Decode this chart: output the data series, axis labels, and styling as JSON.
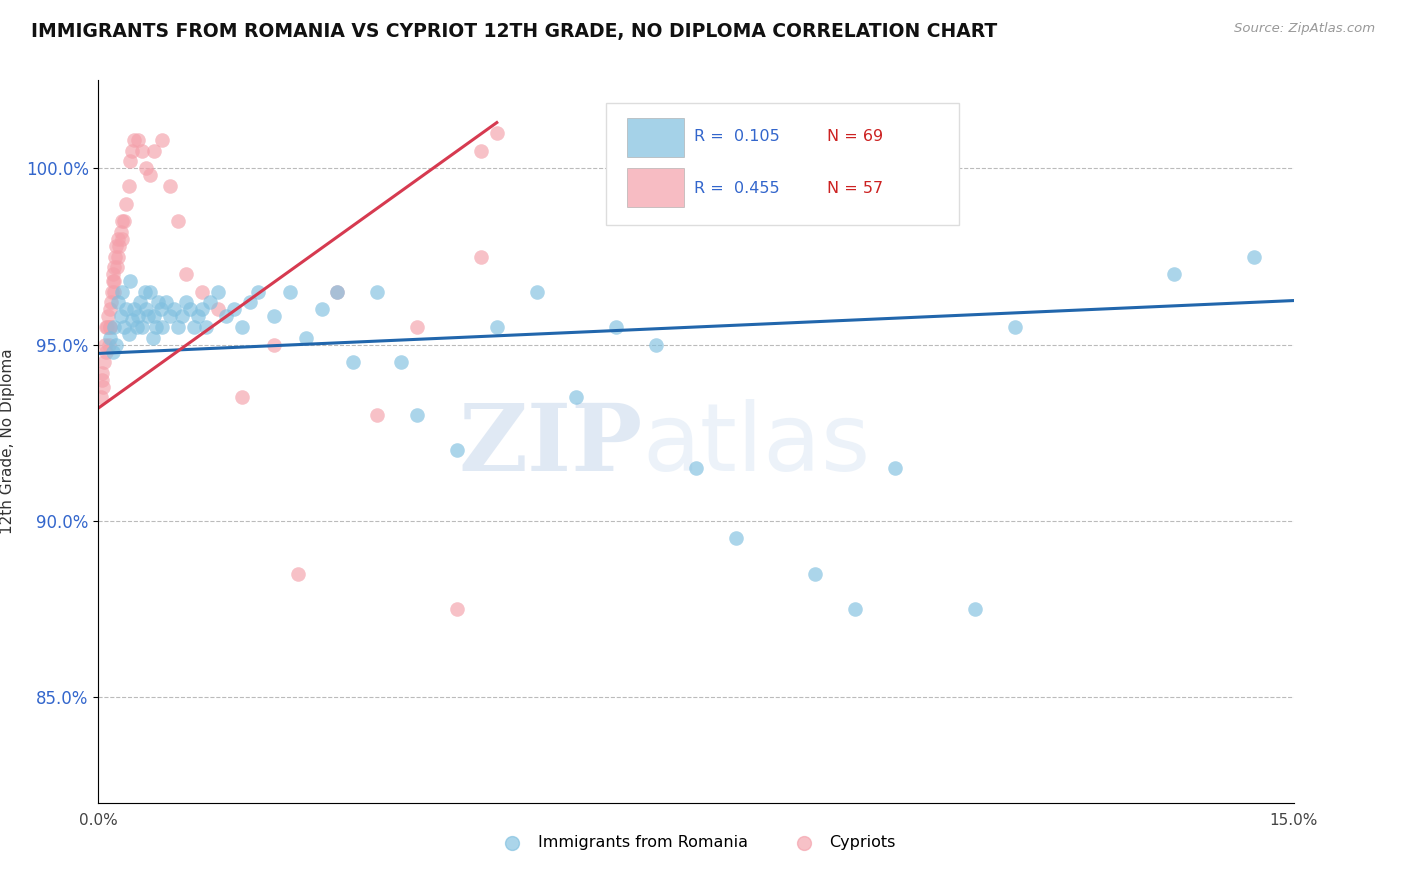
{
  "title": "IMMIGRANTS FROM ROMANIA VS CYPRIOT 12TH GRADE, NO DIPLOMA CORRELATION CHART",
  "source_text": "Source: ZipAtlas.com",
  "ylabel": "12th Grade, No Diploma",
  "xlim": [
    0.0,
    15.0
  ],
  "ylim": [
    82.0,
    102.5
  ],
  "yticks": [
    85.0,
    90.0,
    95.0,
    100.0
  ],
  "ytick_labels": [
    "85.0%",
    "90.0%",
    "95.0%",
    "100.0%"
  ],
  "legend_label_blue": "Immigrants from Romania",
  "legend_label_pink": "Cypriots",
  "blue_color": "#7fbfdf",
  "pink_color": "#f4a0aa",
  "blue_line_color": "#2166ac",
  "pink_line_color": "#d63a50",
  "watermark_zip": "ZIP",
  "watermark_atlas": "atlas",
  "blue_points_x": [
    0.15,
    0.18,
    0.2,
    0.22,
    0.25,
    0.28,
    0.3,
    0.32,
    0.35,
    0.38,
    0.4,
    0.42,
    0.45,
    0.48,
    0.5,
    0.52,
    0.55,
    0.58,
    0.6,
    0.62,
    0.65,
    0.68,
    0.7,
    0.72,
    0.75,
    0.78,
    0.8,
    0.85,
    0.9,
    0.95,
    1.0,
    1.05,
    1.1,
    1.15,
    1.2,
    1.25,
    1.3,
    1.35,
    1.4,
    1.5,
    1.6,
    1.7,
    1.8,
    1.9,
    2.0,
    2.2,
    2.4,
    2.6,
    2.8,
    3.0,
    3.2,
    3.5,
    3.8,
    4.0,
    4.5,
    5.0,
    5.5,
    6.0,
    6.5,
    7.0,
    7.5,
    8.0,
    9.0,
    9.5,
    10.0,
    11.0,
    11.5,
    13.5,
    14.5
  ],
  "blue_points_y": [
    95.2,
    94.8,
    95.5,
    95.0,
    96.2,
    95.8,
    96.5,
    95.5,
    96.0,
    95.3,
    96.8,
    95.7,
    96.0,
    95.5,
    95.8,
    96.2,
    95.5,
    96.5,
    96.0,
    95.8,
    96.5,
    95.2,
    95.8,
    95.5,
    96.2,
    96.0,
    95.5,
    96.2,
    95.8,
    96.0,
    95.5,
    95.8,
    96.2,
    96.0,
    95.5,
    95.8,
    96.0,
    95.5,
    96.2,
    96.5,
    95.8,
    96.0,
    95.5,
    96.2,
    96.5,
    95.8,
    96.5,
    95.2,
    96.0,
    96.5,
    94.5,
    96.5,
    94.5,
    93.0,
    92.0,
    95.5,
    96.5,
    93.5,
    95.5,
    95.0,
    91.5,
    89.5,
    88.5,
    87.5,
    91.5,
    87.5,
    95.5,
    97.0,
    97.5
  ],
  "pink_points_x": [
    0.03,
    0.04,
    0.05,
    0.06,
    0.07,
    0.08,
    0.09,
    0.1,
    0.11,
    0.12,
    0.13,
    0.14,
    0.15,
    0.15,
    0.16,
    0.17,
    0.18,
    0.18,
    0.19,
    0.2,
    0.2,
    0.21,
    0.22,
    0.23,
    0.24,
    0.25,
    0.26,
    0.28,
    0.3,
    0.3,
    0.32,
    0.35,
    0.38,
    0.4,
    0.42,
    0.45,
    0.5,
    0.55,
    0.6,
    0.65,
    0.7,
    0.8,
    0.9,
    1.0,
    1.1,
    1.3,
    1.5,
    1.8,
    2.2,
    2.5,
    3.0,
    3.5,
    4.0,
    4.5,
    4.8,
    4.8,
    5.0
  ],
  "pink_points_y": [
    93.5,
    94.0,
    94.2,
    93.8,
    94.5,
    95.0,
    95.5,
    94.8,
    95.5,
    95.8,
    95.0,
    95.5,
    96.0,
    95.5,
    96.2,
    96.5,
    96.8,
    97.0,
    96.5,
    97.2,
    96.8,
    97.5,
    97.8,
    97.2,
    97.5,
    98.0,
    97.8,
    98.2,
    98.5,
    98.0,
    98.5,
    99.0,
    99.5,
    100.2,
    100.5,
    100.8,
    100.8,
    100.5,
    100.0,
    99.8,
    100.5,
    100.8,
    99.5,
    98.5,
    97.0,
    96.5,
    96.0,
    93.5,
    95.0,
    88.5,
    96.5,
    93.0,
    95.5,
    87.5,
    100.5,
    97.5,
    101.0
  ]
}
